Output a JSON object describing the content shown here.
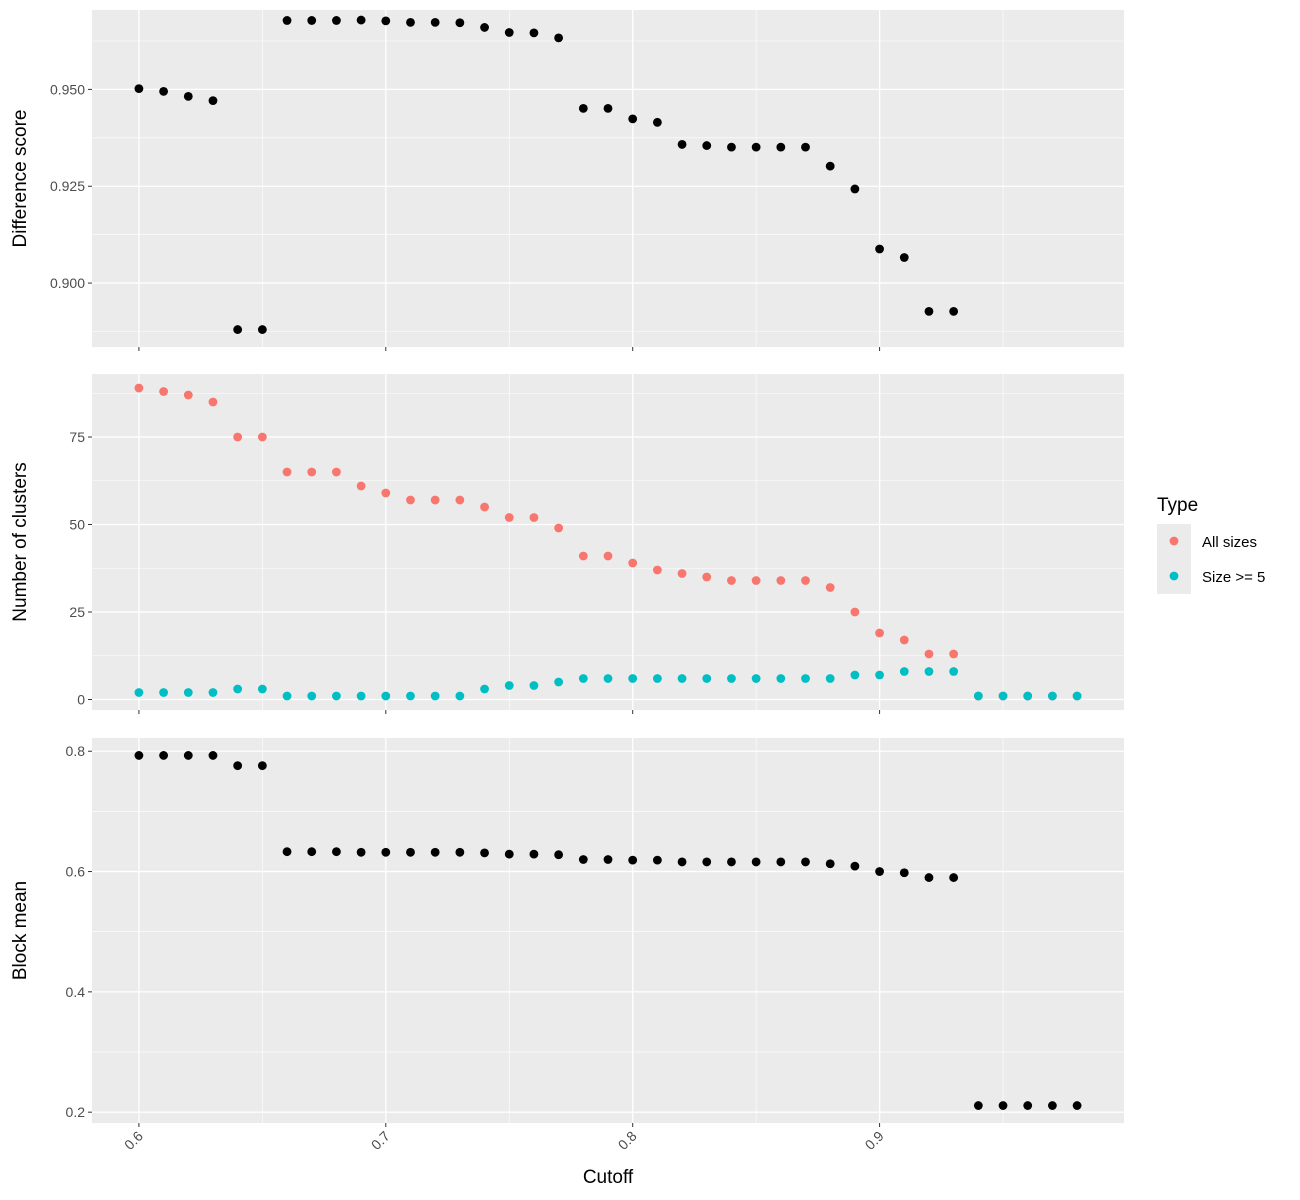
{
  "chart_data": {
    "type": "scatter",
    "x_label": "Cutoff",
    "x_ticks": [
      "0.6",
      "0.7",
      "0.8",
      "0.9"
    ],
    "x_range": [
      0.581,
      0.999
    ],
    "grid": true,
    "legend": {
      "title": "Type",
      "placement": "right",
      "entries": [
        {
          "label": "All sizes",
          "color": "#F8766D"
        },
        {
          "label": "Size >= 5",
          "color": "#00BFC4"
        }
      ]
    },
    "panels": [
      {
        "y_label": "Difference score",
        "y_range": [
          0.8835,
          0.9705
        ],
        "y_ticks": [
          "0.900",
          "0.925",
          "0.950"
        ],
        "series": [
          {
            "color": "#000000",
            "points": [
              [
                0.6,
                0.9502
              ],
              [
                0.61,
                0.9495
              ],
              [
                0.62,
                0.9482
              ],
              [
                0.63,
                0.9471
              ],
              [
                0.64,
                0.888
              ],
              [
                0.65,
                0.888
              ],
              [
                0.66,
                0.9678
              ],
              [
                0.67,
                0.9678
              ],
              [
                0.68,
                0.9678
              ],
              [
                0.69,
                0.9679
              ],
              [
                0.7,
                0.9677
              ],
              [
                0.71,
                0.9673
              ],
              [
                0.72,
                0.9673
              ],
              [
                0.73,
                0.9672
              ],
              [
                0.74,
                0.966
              ],
              [
                0.75,
                0.9647
              ],
              [
                0.76,
                0.9646
              ],
              [
                0.77,
                0.9633
              ],
              [
                0.78,
                0.9451
              ],
              [
                0.79,
                0.9451
              ],
              [
                0.8,
                0.9424
              ],
              [
                0.81,
                0.9415
              ],
              [
                0.82,
                0.9358
              ],
              [
                0.83,
                0.9355
              ],
              [
                0.84,
                0.9351
              ],
              [
                0.85,
                0.9351
              ],
              [
                0.86,
                0.9351
              ],
              [
                0.87,
                0.9351
              ],
              [
                0.88,
                0.9302
              ],
              [
                0.89,
                0.9243
              ],
              [
                0.9,
                0.9088
              ],
              [
                0.91,
                0.9066
              ],
              [
                0.92,
                0.8927
              ],
              [
                0.93,
                0.8927
              ]
            ]
          }
        ]
      },
      {
        "y_label": "Number of clusters",
        "y_range": [
          -3,
          93
        ],
        "y_ticks": [
          "0",
          "25",
          "50",
          "75"
        ],
        "series": [
          {
            "name": "All sizes",
            "color": "#F8766D",
            "points": [
              [
                0.6,
                89
              ],
              [
                0.61,
                88
              ],
              [
                0.62,
                87
              ],
              [
                0.63,
                85
              ],
              [
                0.64,
                75
              ],
              [
                0.65,
                75
              ],
              [
                0.66,
                65
              ],
              [
                0.67,
                65
              ],
              [
                0.68,
                65
              ],
              [
                0.69,
                61
              ],
              [
                0.7,
                59
              ],
              [
                0.71,
                57
              ],
              [
                0.72,
                57
              ],
              [
                0.73,
                57
              ],
              [
                0.74,
                55
              ],
              [
                0.75,
                52
              ],
              [
                0.76,
                52
              ],
              [
                0.77,
                49
              ],
              [
                0.78,
                41
              ],
              [
                0.79,
                41
              ],
              [
                0.8,
                39
              ],
              [
                0.81,
                37
              ],
              [
                0.82,
                36
              ],
              [
                0.83,
                35
              ],
              [
                0.84,
                34
              ],
              [
                0.85,
                34
              ],
              [
                0.86,
                34
              ],
              [
                0.87,
                34
              ],
              [
                0.88,
                32
              ],
              [
                0.89,
                25
              ],
              [
                0.9,
                19
              ],
              [
                0.91,
                17
              ],
              [
                0.92,
                13
              ],
              [
                0.93,
                13
              ],
              [
                0.94,
                1
              ],
              [
                0.95,
                1
              ],
              [
                0.96,
                1
              ],
              [
                0.97,
                1
              ],
              [
                0.98,
                1
              ]
            ]
          },
          {
            "name": "Size >= 5",
            "color": "#00BFC4",
            "points": [
              [
                0.6,
                2
              ],
              [
                0.61,
                2
              ],
              [
                0.62,
                2
              ],
              [
                0.63,
                2
              ],
              [
                0.64,
                3
              ],
              [
                0.65,
                3
              ],
              [
                0.66,
                1
              ],
              [
                0.67,
                1
              ],
              [
                0.68,
                1
              ],
              [
                0.69,
                1
              ],
              [
                0.7,
                1
              ],
              [
                0.71,
                1
              ],
              [
                0.72,
                1
              ],
              [
                0.73,
                1
              ],
              [
                0.74,
                3
              ],
              [
                0.75,
                4
              ],
              [
                0.76,
                4
              ],
              [
                0.77,
                5
              ],
              [
                0.78,
                6
              ],
              [
                0.79,
                6
              ],
              [
                0.8,
                6
              ],
              [
                0.81,
                6
              ],
              [
                0.82,
                6
              ],
              [
                0.83,
                6
              ],
              [
                0.84,
                6
              ],
              [
                0.85,
                6
              ],
              [
                0.86,
                6
              ],
              [
                0.87,
                6
              ],
              [
                0.88,
                6
              ],
              [
                0.89,
                7
              ],
              [
                0.9,
                7
              ],
              [
                0.91,
                8
              ],
              [
                0.92,
                8
              ],
              [
                0.93,
                8
              ],
              [
                0.94,
                1
              ],
              [
                0.95,
                1
              ],
              [
                0.96,
                1
              ],
              [
                0.97,
                1
              ],
              [
                0.98,
                1
              ]
            ]
          }
        ]
      },
      {
        "y_label": "Block mean",
        "y_range": [
          0.182,
          0.822
        ],
        "y_ticks": [
          "0.2",
          "0.4",
          "0.6",
          "0.8"
        ],
        "series": [
          {
            "color": "#000000",
            "points": [
              [
                0.6,
                0.793
              ],
              [
                0.61,
                0.793
              ],
              [
                0.62,
                0.793
              ],
              [
                0.63,
                0.793
              ],
              [
                0.64,
                0.776
              ],
              [
                0.65,
                0.776
              ],
              [
                0.66,
                0.633
              ],
              [
                0.67,
                0.633
              ],
              [
                0.68,
                0.633
              ],
              [
                0.69,
                0.632
              ],
              [
                0.7,
                0.632
              ],
              [
                0.71,
                0.632
              ],
              [
                0.72,
                0.632
              ],
              [
                0.73,
                0.632
              ],
              [
                0.74,
                0.631
              ],
              [
                0.75,
                0.629
              ],
              [
                0.76,
                0.629
              ],
              [
                0.77,
                0.628
              ],
              [
                0.78,
                0.62
              ],
              [
                0.79,
                0.62
              ],
              [
                0.8,
                0.619
              ],
              [
                0.81,
                0.619
              ],
              [
                0.82,
                0.616
              ],
              [
                0.83,
                0.616
              ],
              [
                0.84,
                0.616
              ],
              [
                0.85,
                0.616
              ],
              [
                0.86,
                0.616
              ],
              [
                0.87,
                0.616
              ],
              [
                0.88,
                0.613
              ],
              [
                0.89,
                0.609
              ],
              [
                0.9,
                0.6
              ],
              [
                0.91,
                0.598
              ],
              [
                0.92,
                0.59
              ],
              [
                0.93,
                0.59
              ],
              [
                0.94,
                0.211
              ],
              [
                0.95,
                0.211
              ],
              [
                0.96,
                0.211
              ],
              [
                0.97,
                0.211
              ],
              [
                0.98,
                0.211
              ]
            ]
          }
        ]
      }
    ]
  }
}
